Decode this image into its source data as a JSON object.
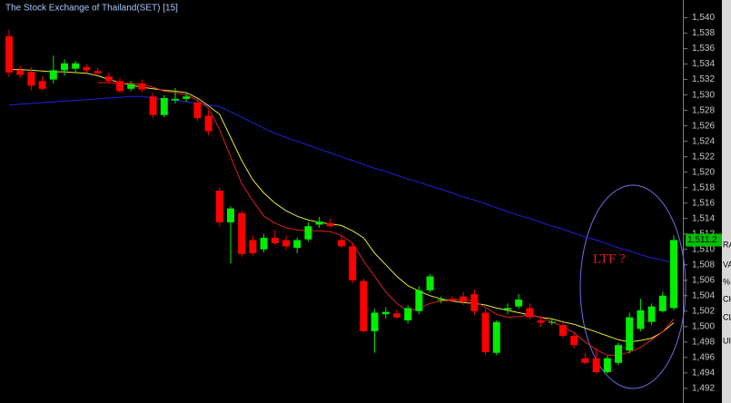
{
  "chart_data": {
    "type": "candlestick",
    "title": "The Stock Exchange of Thailand(SET) [15]",
    "annotation": "LTF ?",
    "up_color": "#00ee00",
    "down_color": "#ff0000",
    "open": [
      1537.6,
      1533.2,
      1533,
      1531.8,
      1532,
      1533.2,
      1533.4,
      1533.6,
      1533.1,
      1532.4,
      1531.8,
      1530.8,
      1531.5,
      1529.8,
      1527.4,
      1529.3,
      1529.5,
      1529,
      1527.3,
      1517.6,
      1513.5,
      1514.7,
      1511.2,
      1510,
      1511.5,
      1511.2,
      1510.2,
      1511.3,
      1513.2,
      1513.4,
      1511.2,
      1510.4,
      1505.9,
      1499.4,
      1501.6,
      1501.7,
      1500.8,
      1502,
      1504.7,
      1503.4,
      1503.6,
      1503.9,
      1504.2,
      1501.8,
      1496.6,
      1502.2,
      1502.6,
      1502.4,
      1500.8,
      1500.5,
      1500.2,
      1498.8,
      1495.9,
      1495.9,
      1494.1,
      1495.3,
      1496.9,
      1499.7,
      1500.6,
      1502,
      1502.4
    ],
    "high": [
      1538.5,
      1533.8,
      1533.6,
      1532.4,
      1535.1,
      1534.6,
      1534.4,
      1534,
      1533.5,
      1532.9,
      1532.2,
      1531.8,
      1532,
      1530.2,
      1530,
      1530.9,
      1530.2,
      1529.5,
      1528,
      1518,
      1515.6,
      1515,
      1511.8,
      1512,
      1512.5,
      1511.8,
      1511.5,
      1513.5,
      1514.2,
      1514,
      1511.8,
      1510.8,
      1506.2,
      1502.3,
      1502.5,
      1502.2,
      1502.8,
      1505.2,
      1506.8,
      1503.9,
      1504,
      1504.5,
      1504.8,
      1502.3,
      1500.8,
      1503,
      1504.2,
      1503,
      1501.4,
      1501,
      1500.6,
      1499.2,
      1496.6,
      1497.2,
      1496.2,
      1497.9,
      1501.8,
      1503.6,
      1503,
      1504.5,
      1511.8
    ],
    "low": [
      1532.3,
      1532.2,
      1530.6,
      1530.6,
      1531.5,
      1532.5,
      1532.8,
      1532.9,
      1532.5,
      1531.5,
      1530.2,
      1530.5,
      1530.4,
      1527,
      1527.1,
      1528.9,
      1529.1,
      1526.6,
      1524.8,
      1513,
      1508.2,
      1509,
      1509.2,
      1509.6,
      1510.6,
      1509.9,
      1509.5,
      1511,
      1512.8,
      1512.8,
      1510.2,
      1505.6,
      1499.2,
      1496.6,
      1501,
      1501,
      1500.4,
      1501.6,
      1504.4,
      1503,
      1503.2,
      1502.8,
      1501.5,
      1496.3,
      1496.3,
      1501.6,
      1502.3,
      1500.9,
      1500,
      1500.2,
      1498.5,
      1497.2,
      1495.1,
      1493.9,
      1493.9,
      1495,
      1496.5,
      1499.4,
      1500.2,
      1501.8,
      1502.1
    ],
    "close": [
      1532.9,
      1532.6,
      1531.2,
      1530.8,
      1533.2,
      1534.1,
      1534.1,
      1533.2,
      1532.8,
      1531.8,
      1530.5,
      1531.4,
      1530.7,
      1527.4,
      1529.6,
      1529.5,
      1529.8,
      1527,
      1525.3,
      1513.5,
      1515.3,
      1509.4,
      1509.5,
      1511.5,
      1510.8,
      1510.4,
      1511.2,
      1513,
      1513.6,
      1513,
      1510.4,
      1506,
      1499.4,
      1501.8,
      1501.9,
      1501.2,
      1502.4,
      1504.7,
      1506.5,
      1503.5,
      1503.4,
      1503.2,
      1502,
      1496.7,
      1500.6,
      1502.4,
      1503.5,
      1501.2,
      1500.5,
      1500.6,
      1498.8,
      1497.6,
      1495.3,
      1494.1,
      1495.9,
      1497.6,
      1501.2,
      1502.1,
      1502.6,
      1504,
      1511.2
    ],
    "last_close_label": "1,511.2",
    "series": [
      {
        "color": "#2020e0",
        "values": [
          1528.7,
          1528.8,
          1528.9,
          1529,
          1529.1,
          1529.2,
          1529.3,
          1529.4,
          1529.5,
          1529.6,
          1529.7,
          1529.8,
          1529.8,
          1529.6,
          1529.4,
          1529.3,
          1529.1,
          1528.9,
          1528.7,
          1528.5,
          1527.8,
          1527.1,
          1526.4,
          1525.7,
          1525,
          1524.5,
          1524,
          1523.5,
          1523,
          1522.5,
          1522,
          1521.5,
          1521,
          1520.5,
          1520.1,
          1519.6,
          1519.1,
          1518.7,
          1518.2,
          1517.8,
          1517.3,
          1516.8,
          1516.4,
          1515.9,
          1515.4,
          1514.9,
          1514.4,
          1514,
          1513.5,
          1513,
          1512.6,
          1512.1,
          1511.6,
          1511.2,
          1510.7,
          1510.2,
          1509.8,
          1509.3,
          1508.9,
          1508.6,
          1508.2
        ]
      },
      {
        "color": "#e8e840",
        "values": [
          1533.3,
          1533.3,
          1533.2,
          1533.1,
          1533,
          1533,
          1532.9,
          1532.8,
          1532.5,
          1532,
          1531.6,
          1531.3,
          1531,
          1530.8,
          1530.6,
          1530.5,
          1530.3,
          1529.6,
          1528.6,
          1527.5,
          1524.5,
          1521.5,
          1519,
          1517.3,
          1516,
          1515,
          1514.3,
          1513.8,
          1513.5,
          1513.3,
          1513.1,
          1512.4,
          1511.5,
          1509.5,
          1508,
          1506.5,
          1505.3,
          1504.6,
          1504,
          1503.6,
          1503.3,
          1503.1,
          1503,
          1502.8,
          1502.4,
          1502.1,
          1501.8,
          1501.5,
          1501.2,
          1501,
          1500.6,
          1500.3,
          1499.8,
          1499.3,
          1498.8,
          1498.3,
          1498,
          1498.2,
          1498.5,
          1499.3,
          1500.5
        ]
      },
      {
        "color": "#e02020",
        "values": [
          null,
          null,
          null,
          null,
          null,
          null,
          null,
          null,
          1531.6,
          1531.6,
          1531.5,
          1531.5,
          1531.4,
          1531,
          1530.5,
          1530.3,
          1530,
          1529.3,
          1528.3,
          1525.5,
          1522,
          1518.5,
          1516.3,
          1514.3,
          1513.4,
          1512.8,
          1512.5,
          1512.4,
          1512.4,
          1512.3,
          1511.8,
          1510.8,
          1508.5,
          1506.5,
          1504.5,
          1503,
          1502,
          1502.4,
          1503,
          1503.3,
          1503.4,
          1503.5,
          1503.3,
          1502.5,
          1501.6,
          1501.2,
          1501.3,
          1501.5,
          1501.2,
          1500.6,
          1500,
          1499.2,
          1498,
          1497,
          1496.3,
          1496.3,
          1496.7,
          1497.3,
          1498.3,
          1499.3,
          1501
        ]
      }
    ],
    "ylim": [
      1490.1,
      1542.3
    ],
    "yticks": [
      {
        "value": 1492,
        "label": "1,492"
      },
      {
        "value": 1494,
        "label": "1,494"
      },
      {
        "value": 1496,
        "label": "1,496"
      },
      {
        "value": 1498,
        "label": "1,498"
      },
      {
        "value": 1500,
        "label": "1,500"
      },
      {
        "value": 1502,
        "label": "1,502"
      },
      {
        "value": 1504,
        "label": "1,504"
      },
      {
        "value": 1506,
        "label": "1,506"
      },
      {
        "value": 1508,
        "label": "1,508"
      },
      {
        "value": 1510,
        "label": "1,510"
      },
      {
        "value": 1512,
        "label": "1,512"
      },
      {
        "value": 1514,
        "label": "1,514"
      },
      {
        "value": 1516,
        "label": "1,516"
      },
      {
        "value": 1518,
        "label": "1,518"
      },
      {
        "value": 1520,
        "label": "1,520"
      },
      {
        "value": 1522,
        "label": "1,522"
      },
      {
        "value": 1524,
        "label": "1,524"
      },
      {
        "value": 1526,
        "label": "1,526"
      },
      {
        "value": 1528,
        "label": "1,528"
      },
      {
        "value": 1530,
        "label": "1,530"
      },
      {
        "value": 1532,
        "label": "1,532"
      },
      {
        "value": 1534,
        "label": "1,534"
      },
      {
        "value": 1536,
        "label": "1,536"
      },
      {
        "value": 1538,
        "label": "1,538"
      },
      {
        "value": 1540,
        "label": "1,540"
      }
    ]
  },
  "sidebar": {
    "labels": [
      "RA",
      "VA",
      "%",
      "CH",
      "CL",
      "UI"
    ]
  }
}
